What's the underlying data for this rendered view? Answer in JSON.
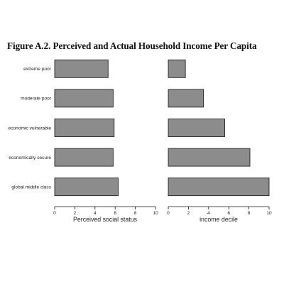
{
  "title": "Figure A.2. Perceived and Actual Household Income Per Capita",
  "chart_data": [
    {
      "type": "bar",
      "orientation": "horizontal",
      "categories": [
        "extreme poor",
        "moderate poor",
        "economic vulnerable",
        "economically secure",
        "global middle class"
      ],
      "values": [
        5.3,
        5.8,
        5.9,
        5.8,
        6.3
      ],
      "xlabel": "Perceived social status",
      "xlim": [
        0,
        10
      ],
      "xticks": [
        "0",
        "2",
        "4",
        "6",
        "8",
        "10"
      ],
      "color": "#8c8c8c",
      "grid": false
    },
    {
      "type": "bar",
      "orientation": "horizontal",
      "categories": [
        "extreme poor",
        "moderate poor",
        "economic vulnerable",
        "economically secure",
        "global middle class"
      ],
      "values": [
        1.7,
        3.5,
        5.6,
        8.1,
        10.0
      ],
      "xlabel": "income decile",
      "xlim": [
        0,
        10
      ],
      "xticks": [
        "0",
        "2",
        "4",
        "6",
        "8",
        "10"
      ],
      "color": "#8c8c8c",
      "grid": false
    }
  ]
}
